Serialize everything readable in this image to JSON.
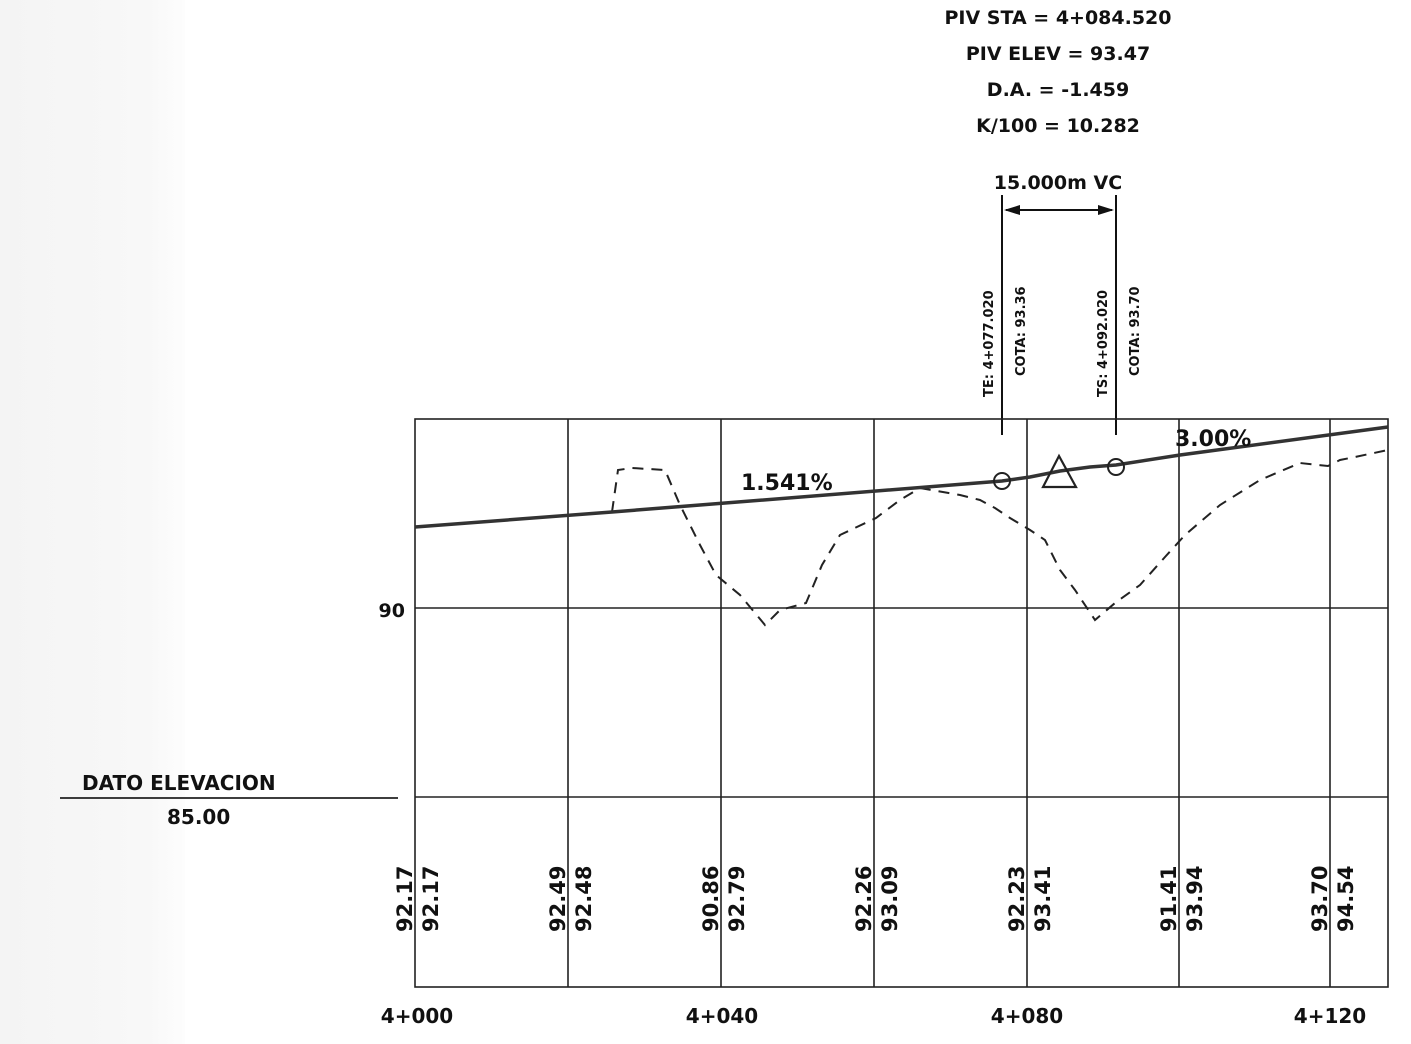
{
  "piv_info": {
    "sta": "PIV STA = 4+084.520",
    "elev": "PIV ELEV = 93.47",
    "da": "D.A. = -1.459",
    "k": "K/100 = 10.282"
  },
  "vc_length_label": "15.000m VC",
  "curve_points": {
    "te": {
      "label": "TE: 4+077.020",
      "cota": "COTA: 93.36"
    },
    "ts": {
      "label": "TS: 4+092.020",
      "cota": "COTA: 93.70"
    }
  },
  "grades": {
    "left": "1.541%",
    "right": "3.00%"
  },
  "elevation_gridline_label": "90",
  "datum": {
    "title": "DATO ELEVACION",
    "value": "85.00"
  },
  "elevation_columns": [
    {
      "existing": "92.17",
      "proposed": "92.17"
    },
    {
      "existing": "92.49",
      "proposed": "92.48"
    },
    {
      "existing": "90.86",
      "proposed": "92.79"
    },
    {
      "existing": "92.26",
      "proposed": "93.09"
    },
    {
      "existing": "92.23",
      "proposed": "93.41"
    },
    {
      "existing": "91.41",
      "proposed": "93.94"
    },
    {
      "existing": "93.70",
      "proposed": "94.54"
    }
  ],
  "station_labels": [
    "4+000",
    "4+040",
    "4+080",
    "4+120"
  ]
}
